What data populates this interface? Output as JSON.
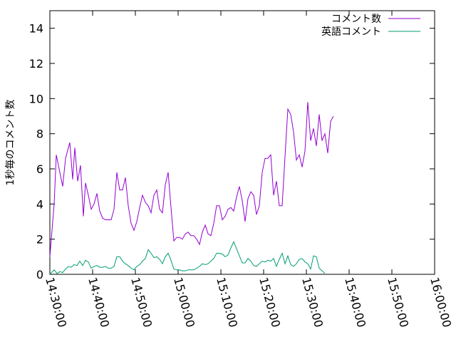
{
  "chart_data": {
    "type": "line",
    "title": "",
    "xlabel": "",
    "ylabel": "1秒毎のコメント数",
    "xlim": [
      "14:30:00",
      "16:00:00"
    ],
    "ylim": [
      0,
      15
    ],
    "x_ticks": [
      "14:30:00",
      "14:40:00",
      "14:50:00",
      "15:00:00",
      "15:10:00",
      "15:20:00",
      "15:30:00",
      "15:40:00",
      "15:50:00",
      "16:00:00"
    ],
    "y_ticks": [
      "0",
      "2",
      "4",
      "6",
      "8",
      "10",
      "12",
      "14"
    ],
    "grid": false,
    "legend_position": "top-right",
    "series": [
      {
        "name": "コメント数",
        "color": "#9400d3",
        "points": [
          [
            "14:30:00",
            1.0
          ],
          [
            "14:31:00",
            4.0
          ],
          [
            "14:31:30",
            6.8
          ],
          [
            "14:33:00",
            5.0
          ],
          [
            "14:33:40",
            6.6
          ],
          [
            "14:34:40",
            7.5
          ],
          [
            "14:35:20",
            5.4
          ],
          [
            "14:35:50",
            7.2
          ],
          [
            "14:36:30",
            5.3
          ],
          [
            "14:37:10",
            6.2
          ],
          [
            "14:37:50",
            3.3
          ],
          [
            "14:38:20",
            5.2
          ],
          [
            "14:39:00",
            4.5
          ],
          [
            "14:39:40",
            3.7
          ],
          [
            "14:40:20",
            4.0
          ],
          [
            "14:41:00",
            4.6
          ],
          [
            "14:41:40",
            3.6
          ],
          [
            "14:42:20",
            3.2
          ],
          [
            "14:43:00",
            3.1
          ],
          [
            "14:43:40",
            3.1
          ],
          [
            "14:44:20",
            3.1
          ],
          [
            "14:45:00",
            3.7
          ],
          [
            "14:45:40",
            5.8
          ],
          [
            "14:46:20",
            4.8
          ],
          [
            "14:47:00",
            4.8
          ],
          [
            "14:47:40",
            5.5
          ],
          [
            "14:48:20",
            3.9
          ],
          [
            "14:49:00",
            2.9
          ],
          [
            "14:49:40",
            2.5
          ],
          [
            "14:50:20",
            3.0
          ],
          [
            "14:51:00",
            3.8
          ],
          [
            "14:51:40",
            4.5
          ],
          [
            "14:52:20",
            4.1
          ],
          [
            "14:53:00",
            3.9
          ],
          [
            "14:53:40",
            3.5
          ],
          [
            "14:54:20",
            4.5
          ],
          [
            "14:55:00",
            4.8
          ],
          [
            "14:55:40",
            3.7
          ],
          [
            "14:56:20",
            3.5
          ],
          [
            "14:57:00",
            5.1
          ],
          [
            "14:57:40",
            5.8
          ],
          [
            "14:58:20",
            3.8
          ],
          [
            "14:59:00",
            1.9
          ],
          [
            "14:59:40",
            2.1
          ],
          [
            "15:00:20",
            2.1
          ],
          [
            "15:01:00",
            2.0
          ],
          [
            "15:01:40",
            2.3
          ],
          [
            "15:02:20",
            2.4
          ],
          [
            "15:03:00",
            2.2
          ],
          [
            "15:03:40",
            2.2
          ],
          [
            "15:04:20",
            2.0
          ],
          [
            "15:05:00",
            1.7
          ],
          [
            "15:05:40",
            2.4
          ],
          [
            "15:06:20",
            2.8
          ],
          [
            "15:07:00",
            2.3
          ],
          [
            "15:07:40",
            2.2
          ],
          [
            "15:08:20",
            2.9
          ],
          [
            "15:09:00",
            3.9
          ],
          [
            "15:09:40",
            3.9
          ],
          [
            "15:10:20",
            3.1
          ],
          [
            "15:11:00",
            3.3
          ],
          [
            "15:11:40",
            3.7
          ],
          [
            "15:12:20",
            3.8
          ],
          [
            "15:13:00",
            3.6
          ],
          [
            "15:13:40",
            4.4
          ],
          [
            "15:14:20",
            5.0
          ],
          [
            "15:15:00",
            4.2
          ],
          [
            "15:15:40",
            3.0
          ],
          [
            "15:16:20",
            4.3
          ],
          [
            "15:17:00",
            4.7
          ],
          [
            "15:17:40",
            4.5
          ],
          [
            "15:18:20",
            3.4
          ],
          [
            "15:19:00",
            3.9
          ],
          [
            "15:19:40",
            5.8
          ],
          [
            "15:20:20",
            6.6
          ],
          [
            "15:21:00",
            6.6
          ],
          [
            "15:21:40",
            6.8
          ],
          [
            "15:22:20",
            4.5
          ],
          [
            "15:23:00",
            5.3
          ],
          [
            "15:23:40",
            3.9
          ],
          [
            "15:24:20",
            3.9
          ],
          [
            "15:25:00",
            6.7
          ],
          [
            "15:25:40",
            9.4
          ],
          [
            "15:26:20",
            9.1
          ],
          [
            "15:27:00",
            8.1
          ],
          [
            "15:27:40",
            6.5
          ],
          [
            "15:28:20",
            6.8
          ],
          [
            "15:29:00",
            6.1
          ],
          [
            "15:29:40",
            7.0
          ],
          [
            "15:30:20",
            9.8
          ],
          [
            "15:31:00",
            7.6
          ],
          [
            "15:31:40",
            8.3
          ],
          [
            "15:32:20",
            7.3
          ],
          [
            "15:33:00",
            9.1
          ],
          [
            "15:33:40",
            7.6
          ],
          [
            "15:34:20",
            8.0
          ],
          [
            "15:35:00",
            6.9
          ],
          [
            "15:35:40",
            8.7
          ],
          [
            "15:36:20",
            9.0
          ]
        ]
      },
      {
        "name": "英語コメント",
        "color": "#009e73",
        "points": [
          [
            "14:30:00",
            0.0
          ],
          [
            "14:31:00",
            0.25
          ],
          [
            "14:31:40",
            0.05
          ],
          [
            "14:32:20",
            0.15
          ],
          [
            "14:33:00",
            0.1
          ],
          [
            "14:33:40",
            0.3
          ],
          [
            "14:34:20",
            0.45
          ],
          [
            "14:35:00",
            0.4
          ],
          [
            "14:35:40",
            0.55
          ],
          [
            "14:36:20",
            0.5
          ],
          [
            "14:37:00",
            0.75
          ],
          [
            "14:37:40",
            0.5
          ],
          [
            "14:38:20",
            0.8
          ],
          [
            "14:39:00",
            0.7
          ],
          [
            "14:39:40",
            0.35
          ],
          [
            "14:40:20",
            0.45
          ],
          [
            "14:41:00",
            0.5
          ],
          [
            "14:41:40",
            0.4
          ],
          [
            "14:42:20",
            0.4
          ],
          [
            "14:43:00",
            0.45
          ],
          [
            "14:43:40",
            0.35
          ],
          [
            "14:44:20",
            0.35
          ],
          [
            "14:45:00",
            0.45
          ],
          [
            "14:45:40",
            1.0
          ],
          [
            "14:46:20",
            1.0
          ],
          [
            "14:47:00",
            0.75
          ],
          [
            "14:47:40",
            0.6
          ],
          [
            "14:48:20",
            0.5
          ],
          [
            "14:49:00",
            0.35
          ],
          [
            "14:49:40",
            0.25
          ],
          [
            "14:50:20",
            0.45
          ],
          [
            "14:51:00",
            0.55
          ],
          [
            "14:51:40",
            0.75
          ],
          [
            "14:52:20",
            0.9
          ],
          [
            "14:53:00",
            1.4
          ],
          [
            "14:53:40",
            1.2
          ],
          [
            "14:54:20",
            0.95
          ],
          [
            "14:55:00",
            1.0
          ],
          [
            "14:55:40",
            0.85
          ],
          [
            "14:56:20",
            0.6
          ],
          [
            "14:57:00",
            1.0
          ],
          [
            "14:57:40",
            1.2
          ],
          [
            "14:58:20",
            0.8
          ],
          [
            "14:59:00",
            0.3
          ],
          [
            "14:59:40",
            0.25
          ],
          [
            "15:00:20",
            0.25
          ],
          [
            "15:01:00",
            0.2
          ],
          [
            "15:01:40",
            0.2
          ],
          [
            "15:02:20",
            0.25
          ],
          [
            "15:03:00",
            0.25
          ],
          [
            "15:03:40",
            0.25
          ],
          [
            "15:04:20",
            0.35
          ],
          [
            "15:05:00",
            0.45
          ],
          [
            "15:05:40",
            0.6
          ],
          [
            "15:06:20",
            0.55
          ],
          [
            "15:07:00",
            0.6
          ],
          [
            "15:07:40",
            0.75
          ],
          [
            "15:08:20",
            0.9
          ],
          [
            "15:09:00",
            1.2
          ],
          [
            "15:09:40",
            1.2
          ],
          [
            "15:10:20",
            1.15
          ],
          [
            "15:11:00",
            1.0
          ],
          [
            "15:11:40",
            1.1
          ],
          [
            "15:12:20",
            1.5
          ],
          [
            "15:13:00",
            1.85
          ],
          [
            "15:13:40",
            1.45
          ],
          [
            "15:14:20",
            1.05
          ],
          [
            "15:15:00",
            0.65
          ],
          [
            "15:15:40",
            0.65
          ],
          [
            "15:16:20",
            0.9
          ],
          [
            "15:17:00",
            0.75
          ],
          [
            "15:17:40",
            0.5
          ],
          [
            "15:18:20",
            0.45
          ],
          [
            "15:19:00",
            0.6
          ],
          [
            "15:19:40",
            0.75
          ],
          [
            "15:20:20",
            0.7
          ],
          [
            "15:21:00",
            0.8
          ],
          [
            "15:21:40",
            0.75
          ],
          [
            "15:22:20",
            0.9
          ],
          [
            "15:23:00",
            0.45
          ],
          [
            "15:23:40",
            0.85
          ],
          [
            "15:24:20",
            1.2
          ],
          [
            "15:25:00",
            0.6
          ],
          [
            "15:25:40",
            1.05
          ],
          [
            "15:26:20",
            0.55
          ],
          [
            "15:27:00",
            0.45
          ],
          [
            "15:27:40",
            0.6
          ],
          [
            "15:28:20",
            0.85
          ],
          [
            "15:29:00",
            0.9
          ],
          [
            "15:29:40",
            0.7
          ],
          [
            "15:30:20",
            0.6
          ],
          [
            "15:31:00",
            0.3
          ],
          [
            "15:31:40",
            1.05
          ],
          [
            "15:32:20",
            1.0
          ],
          [
            "15:33:00",
            0.35
          ],
          [
            "15:33:40",
            0.2
          ],
          [
            "15:34:20",
            0.05
          ]
        ]
      }
    ]
  }
}
